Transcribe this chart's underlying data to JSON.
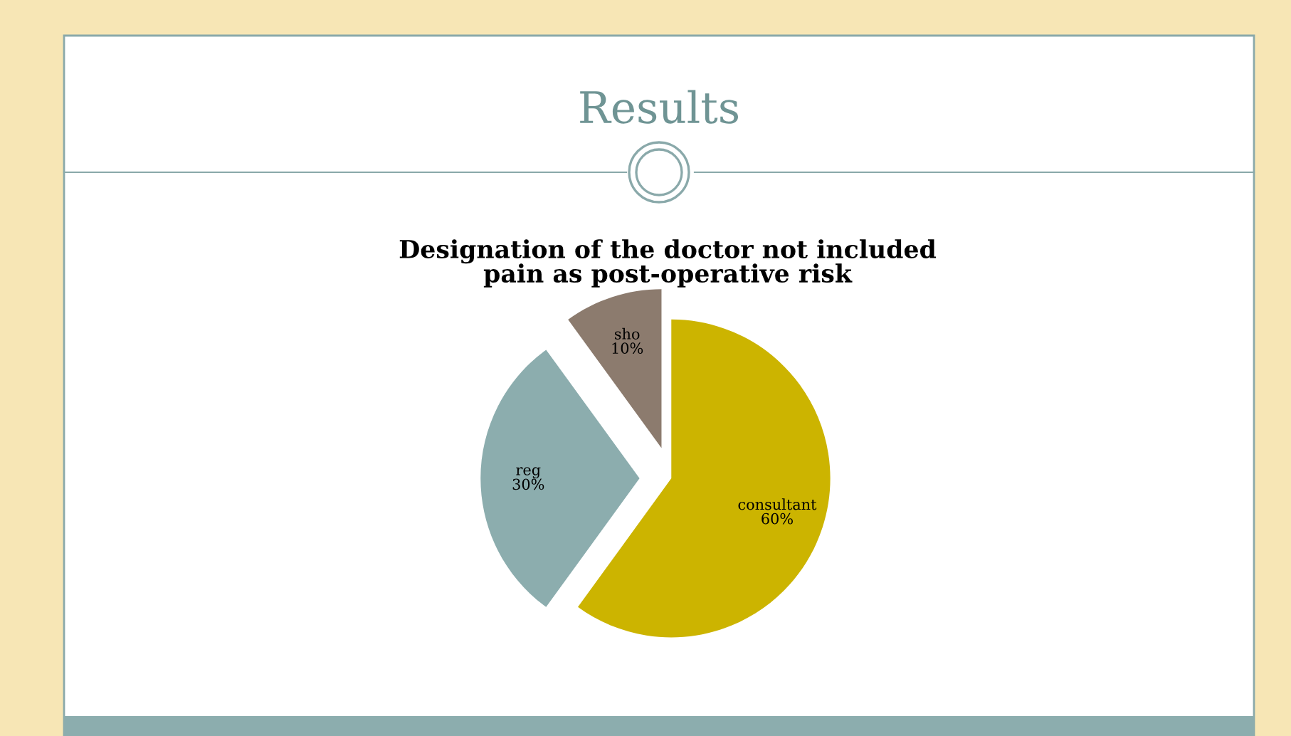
{
  "chart_data": {
    "type": "pie",
    "title": "Results",
    "subtitle": "Designation of the doctor not included\npain as post-operative risk",
    "categories": [
      "consultant",
      "reg",
      "sho"
    ],
    "values": [
      60,
      30,
      10
    ],
    "colors": [
      "#ccb400",
      "#8cadae",
      "#8c7b6e"
    ],
    "value_labels": [
      "60%",
      "30%",
      "10%"
    ],
    "legend": false
  }
}
